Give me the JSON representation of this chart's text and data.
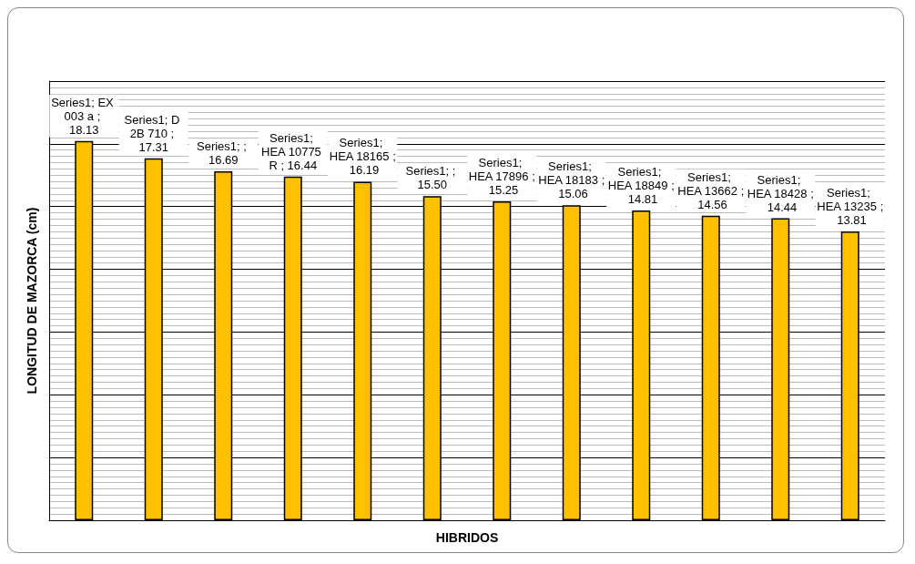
{
  "chart_data": {
    "type": "bar",
    "xlabel": "HIBRIDOS",
    "ylabel": "LONGITUD DE MAZORCA (cm)",
    "categories": [
      null,
      null,
      null,
      null,
      null,
      null,
      null,
      null,
      null,
      null,
      null,
      null
    ],
    "series": [
      {
        "color": "#ffc000",
        "values": [
          18.13,
          17.31,
          16.69,
          16.44,
          16.19,
          15.5,
          15.25,
          15.06,
          14.81,
          14.56,
          14.44,
          13.81
        ],
        "value_labels": [
          "Series1; EX 003 a ; 18.13",
          "Series1; D 2B 710 ; 17.31",
          "Series1; ; 16.69",
          "Series1; HEA 10775 R ; 16.44",
          "Series1; HEA 18165 ; 16.19",
          "Series1; ; 15.50",
          "Series1; HEA 17896 ; 15.25",
          "Series1; HEA 18183 ; 15.06",
          "Series1; HEA 18849 ; 14.81",
          "Series1; HEA 13662 ; 14.56",
          "Series1; HEA 18428 ; 14.44",
          "Series1; HEA 13235 ; 13.81"
        ]
      }
    ],
    "grid": "y",
    "tick_labels": false
  }
}
